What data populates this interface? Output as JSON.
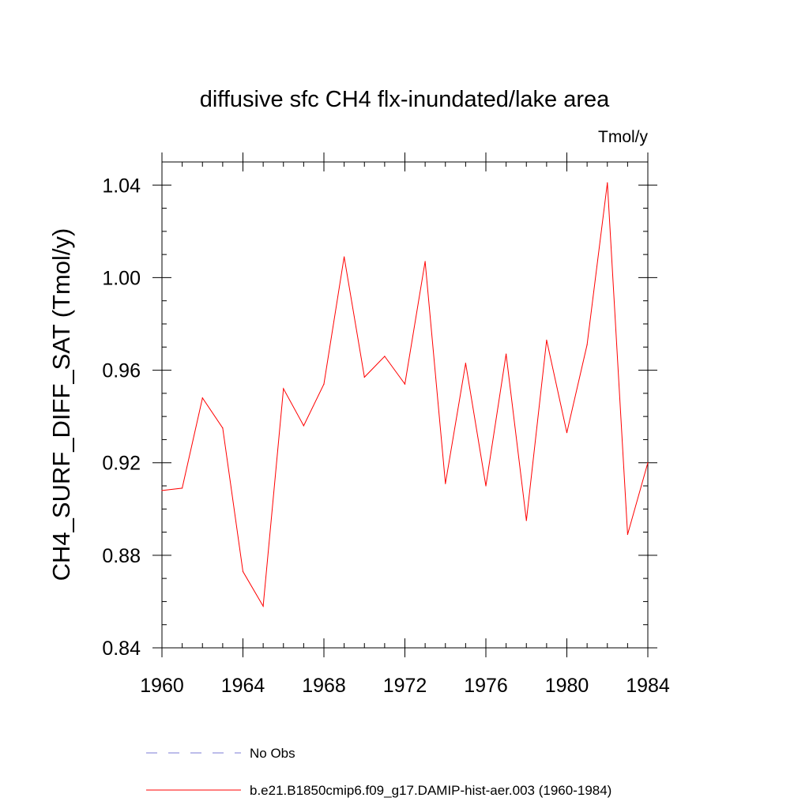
{
  "chart_data": {
    "type": "line",
    "title": "diffusive sfc CH4 flx-inundated/lake area",
    "units_label": "Tmol/y",
    "ylabel": "CH4_SURF_DIFF_SAT  (Tmol/y)",
    "xlabel": "",
    "xlim": [
      1960,
      1984
    ],
    "ylim": [
      0.84,
      1.05
    ],
    "x_ticks": [
      1960,
      1964,
      1968,
      1972,
      1976,
      1980,
      1984
    ],
    "x_tick_labels": [
      "1960",
      "1964",
      "1968",
      "1972",
      "1976",
      "1980",
      "1984"
    ],
    "y_ticks": [
      0.84,
      0.88,
      0.92,
      0.96,
      1.0,
      1.04
    ],
    "y_tick_labels": [
      "0.84",
      "0.88",
      "0.92",
      "0.96",
      "1.00",
      "1.04"
    ],
    "grid": false,
    "legend_position": "bottom",
    "series": [
      {
        "name": "b.e21.B1850cmip6.f09_g17.DAMIP-hist-aer.003 (1960-1984)",
        "color": "#ff0000",
        "style": "solid",
        "x": [
          1960,
          1961,
          1962,
          1963,
          1964,
          1965,
          1966,
          1967,
          1968,
          1969,
          1970,
          1971,
          1972,
          1973,
          1974,
          1975,
          1976,
          1977,
          1978,
          1979,
          1980,
          1981,
          1982,
          1983,
          1984
        ],
        "y": [
          0.908,
          0.909,
          0.948,
          0.935,
          0.873,
          0.858,
          0.952,
          0.936,
          0.954,
          1.009,
          0.957,
          0.966,
          0.954,
          1.007,
          0.911,
          0.963,
          0.91,
          0.967,
          0.895,
          0.973,
          0.933,
          0.971,
          1.041,
          0.889,
          0.92
        ]
      }
    ],
    "legend": [
      {
        "label": "No Obs",
        "color": "#7b7bd6",
        "style": "dashed"
      },
      {
        "label": "b.e21.B1850cmip6.f09_g17.DAMIP-hist-aer.003 (1960-1984)",
        "color": "#ff0000",
        "style": "solid"
      }
    ]
  }
}
